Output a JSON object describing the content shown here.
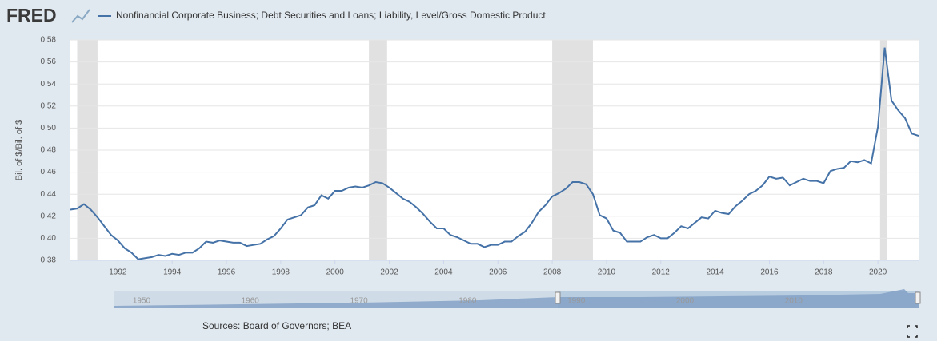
{
  "logo": "FRED",
  "chart_data": {
    "type": "line",
    "ylabel": "Bil. of $/Bil. of $",
    "source": "Sources: Board of Governors; BEA",
    "x": [
      1990.25,
      1990.5,
      1990.75,
      1991,
      1991.25,
      1991.5,
      1991.75,
      1992,
      1992.25,
      1992.5,
      1992.75,
      1993,
      1993.25,
      1993.5,
      1993.75,
      1994,
      1994.25,
      1994.5,
      1994.75,
      1995,
      1995.25,
      1995.5,
      1995.75,
      1996,
      1996.25,
      1996.5,
      1996.75,
      1997,
      1997.25,
      1997.5,
      1997.75,
      1998,
      1998.25,
      1998.5,
      1998.75,
      1999,
      1999.25,
      1999.5,
      1999.75,
      2000,
      2000.25,
      2000.5,
      2000.75,
      2001,
      2001.25,
      2001.5,
      2001.75,
      2002,
      2002.25,
      2002.5,
      2002.75,
      2003,
      2003.25,
      2003.5,
      2003.75,
      2004,
      2004.25,
      2004.5,
      2004.75,
      2005,
      2005.25,
      2005.5,
      2005.75,
      2006,
      2006.25,
      2006.5,
      2006.75,
      2007,
      2007.25,
      2007.5,
      2007.75,
      2008,
      2008.25,
      2008.5,
      2008.75,
      2009,
      2009.25,
      2009.5,
      2009.75,
      2010,
      2010.25,
      2010.5,
      2010.75,
      2011,
      2011.25,
      2011.5,
      2011.75,
      2012,
      2012.25,
      2012.5,
      2012.75,
      2013,
      2013.25,
      2013.5,
      2013.75,
      2014,
      2014.25,
      2014.5,
      2014.75,
      2015,
      2015.25,
      2015.5,
      2015.75,
      2016,
      2016.25,
      2016.5,
      2016.75,
      2017,
      2017.25,
      2017.5,
      2017.75,
      2018,
      2018.25,
      2018.5,
      2018.75,
      2019,
      2019.25,
      2019.5,
      2019.75,
      2020,
      2020.25,
      2020.5,
      2020.75,
      2021,
      2021.25,
      2021.5
    ],
    "series": [
      {
        "name": "Nonfinancial Corporate Business; Debt Securities and Loans; Liability, Level/Gross Domestic Product",
        "color": "#4572a7",
        "values": [
          0.426,
          0.427,
          0.431,
          0.426,
          0.419,
          0.411,
          0.403,
          0.398,
          0.391,
          0.387,
          0.381,
          0.382,
          0.383,
          0.385,
          0.384,
          0.386,
          0.385,
          0.387,
          0.387,
          0.391,
          0.397,
          0.396,
          0.398,
          0.397,
          0.396,
          0.396,
          0.393,
          0.394,
          0.395,
          0.399,
          0.402,
          0.409,
          0.417,
          0.419,
          0.421,
          0.428,
          0.43,
          0.439,
          0.436,
          0.443,
          0.443,
          0.446,
          0.447,
          0.446,
          0.448,
          0.451,
          0.45,
          0.446,
          0.441,
          0.436,
          0.433,
          0.428,
          0.422,
          0.415,
          0.409,
          0.409,
          0.403,
          0.401,
          0.398,
          0.395,
          0.395,
          0.392,
          0.394,
          0.394,
          0.397,
          0.397,
          0.402,
          0.406,
          0.414,
          0.424,
          0.43,
          0.438,
          0.441,
          0.445,
          0.451,
          0.451,
          0.449,
          0.44,
          0.421,
          0.418,
          0.407,
          0.405,
          0.397,
          0.397,
          0.397,
          0.401,
          0.403,
          0.4,
          0.4,
          0.405,
          0.411,
          0.409,
          0.414,
          0.419,
          0.418,
          0.425,
          0.423,
          0.422,
          0.429,
          0.434,
          0.44,
          0.443,
          0.448,
          0.456,
          0.454,
          0.455,
          0.448,
          0.451,
          0.454,
          0.452,
          0.452,
          0.45,
          0.461,
          0.463,
          0.464,
          0.47,
          0.469,
          0.471,
          0.468,
          0.501,
          0.573,
          0.525,
          0.516,
          0.509,
          0.495,
          0.493
        ]
      }
    ],
    "xlim": [
      1990.25,
      2021.5
    ],
    "ylim": [
      0.38,
      0.58
    ],
    "xticks": [
      1992,
      1994,
      1996,
      1998,
      2000,
      2002,
      2004,
      2006,
      2008,
      2010,
      2012,
      2014,
      2016,
      2018,
      2020
    ],
    "yticks": [
      0.38,
      {
        "value": 0.4,
        "label": "0.40"
      },
      0.42,
      0.44,
      0.46,
      0.48,
      {
        "value": 0.5,
        "label": "0.50"
      },
      0.52,
      0.54,
      0.56,
      0.58
    ],
    "grid": true,
    "shaded_periods": [
      [
        1990.5,
        1991.25
      ],
      [
        2001.25,
        2001.92
      ],
      [
        2008,
        2009.5
      ],
      [
        2020.08,
        2020.33
      ]
    ],
    "navigator": {
      "xlim": [
        1947.5,
        2021.5
      ],
      "xticks": [
        1950,
        1960,
        1970,
        1980,
        1990,
        2000,
        2010
      ]
    }
  }
}
